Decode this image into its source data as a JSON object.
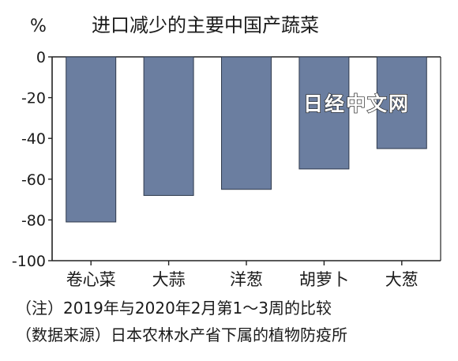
{
  "unit_label": "%",
  "watermark": "日经中文网",
  "notes": {
    "note": "（注）2019年与2020年2月第1～3周的比较",
    "source": "（数据来源）日本农林水产省下属的植物防疫所"
  },
  "colors": {
    "bar": "#6b7ea0",
    "bar_stroke": "#2f3a4d",
    "axis": "#222222"
  },
  "chart_data": {
    "type": "bar",
    "title": "进口减少的主要中国产蔬菜",
    "categories": [
      "卷心菜",
      "大蒜",
      "洋葱",
      "胡萝卜",
      "大葱"
    ],
    "values": [
      -81,
      -68,
      -65,
      -55,
      -45
    ],
    "ylabel": "%",
    "ylim": [
      -100,
      0
    ],
    "yticks": [
      0,
      -20,
      -40,
      -60,
      -80,
      -100
    ],
    "grid": false,
    "legend": "none"
  }
}
